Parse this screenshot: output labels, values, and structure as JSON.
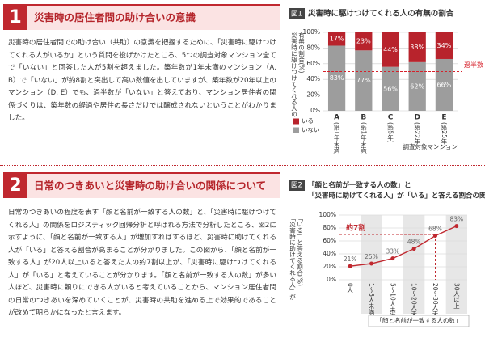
{
  "sections": [
    {
      "number": "1",
      "title": "災害時の居住者間の助け合いの意識",
      "body": "災害時の居住者間での助け合い（共助）の意識を把握するために、「災害時に駆けつけてくれる人がいるか」という質問を投げかけたところ、5つの調査対象マンション全てで「いない」と回答した人が5割を超えました。築年数が1年未満のマンション（A, B）で「いない」が約8割と突出して高い数値を出していますが、築年数が20年以上のマンション（D, E）でも、過半数が「いない」と答えており、マンション居住者の関係づくりは、築年数の経過や居住の長さだけでは醸成されないということがわかりました。"
    },
    {
      "number": "2",
      "title": "日常のつきあいと災害時の助け合いの関係について",
      "body": "日常のつきあいの程度を表す「顔と名前が一致する人の数」と、「災害時に駆けつけてくれる人」の関係をロジスティック回帰分析と呼ばれる方法で分析したところ、図2に示すように、「顔と名前が一致する人」が増加すればするほど、災害時に助けてくれる人が「いる」と答える割合が高まることが分かりました。この図から、「顔と名前が一致する人」が20人以上いると答えた人の約7割以上が、「災害時に駆けつけてくれる人」が「いる」と考えていることが分かります。「顔と名前が一致する人の数」が多い人ほど、災害時に頼りにできる人がいると考えていることから、マンション居住者間の日常のつきあいを深めていくことが、災害時の共助を進める上で効果的であることが改めて明らかになったと言えます。"
    }
  ],
  "chart_data": [
    {
      "type": "bar",
      "stacked": true,
      "figure": "図1",
      "title": "災害時に駆けつけてくれる人の有無の割合",
      "y_label": [
        "災害時に駆けつけてくれる人の",
        "有無の割合(%)"
      ],
      "x_label": "調査対象マンション",
      "categories": [
        "A",
        "B",
        "C",
        "D",
        "E"
      ],
      "category_notes": [
        "(築1年未満)",
        "(築1年未満)",
        "(築5年)",
        "(築22年)",
        "(築25年)"
      ],
      "series": [
        {
          "name": "いない",
          "color": "#9d9d9d",
          "values": [
            83,
            77,
            56,
            62,
            66
          ],
          "value_labels": [
            "83%",
            "77%",
            "56%",
            "62%",
            "66%"
          ]
        },
        {
          "name": "いる",
          "color": "#b8232c",
          "values": [
            17,
            23,
            44,
            38,
            34
          ],
          "value_labels": [
            "17%",
            "23%",
            "44%",
            "38%",
            "34%"
          ]
        }
      ],
      "ylim": [
        0,
        100
      ],
      "yticks": [
        {
          "value": 0,
          "label": "0%"
        },
        {
          "value": 20,
          "label": "20%"
        },
        {
          "value": 40,
          "label": "40%"
        },
        {
          "value": 60,
          "label": "60%"
        },
        {
          "value": 80,
          "label": "80%"
        },
        {
          "value": 100,
          "label": "100%"
        }
      ],
      "annotation": {
        "text": "過半数",
        "value": 50,
        "color": "#d6202a"
      }
    },
    {
      "type": "line",
      "figure": "図2",
      "title": [
        "「顔と名前が一致する人の数」と",
        "「災害時に助けてくれる人」が「いる」と答える割合の関係"
      ],
      "y_label": [
        "「災害時に助けてくれる人」が",
        "「いる」と答える割合(%)"
      ],
      "x_label": "「顔と名前が一致する人の数」",
      "categories": [
        "0人",
        "1～5人未満",
        "5～10人未満",
        "10～20人未満",
        "20～30人未満",
        "30人以上"
      ],
      "series": [
        {
          "name": "いる",
          "color": "#c0282f",
          "values": [
            21,
            25,
            33,
            48,
            68,
            83
          ],
          "value_labels": [
            "21%",
            "25%",
            "33%",
            "48%",
            "68%",
            "83%"
          ]
        }
      ],
      "ylim": [
        0,
        100
      ],
      "yticks": [
        {
          "value": 0,
          "label": "0%"
        },
        {
          "value": 20,
          "label": "20%"
        },
        {
          "value": 40,
          "label": "40%"
        },
        {
          "value": 60,
          "label": "60%"
        },
        {
          "value": 80,
          "label": "80%"
        },
        {
          "value": 100,
          "label": "100%"
        }
      ],
      "annotation": {
        "text": "約7割",
        "value": 70,
        "at": 4,
        "color": "#c0282f"
      }
    }
  ]
}
